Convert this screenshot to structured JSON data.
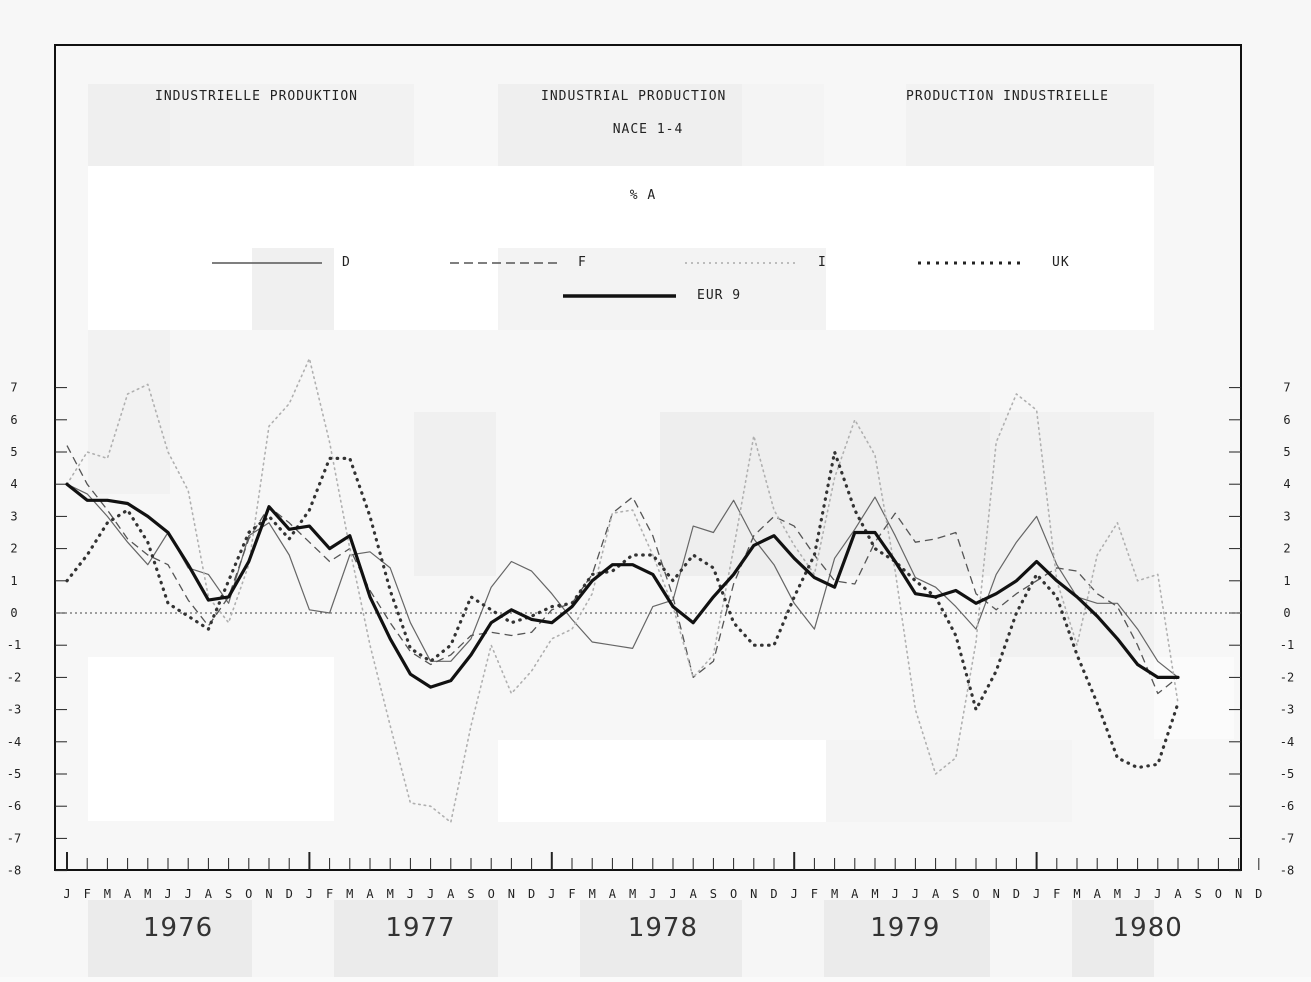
{
  "chart_data": {
    "type": "line",
    "titles": {
      "german": "INDUSTRIELLE PRODUKTION",
      "english": "INDUSTRIAL PRODUCTION",
      "french": "PRODUCTION INDUSTRIELLE",
      "subtitle": "NACE 1-4",
      "unit": "% A"
    },
    "ylim": [
      -8,
      7
    ],
    "yticks": [
      "-8",
      "-7",
      "-6",
      "-5",
      "-4",
      "-3",
      "-2",
      "-1",
      "0",
      "1",
      "2",
      "3",
      "4",
      "5",
      "6",
      "7"
    ],
    "month_labels": [
      "J",
      "F",
      "M",
      "A",
      "M",
      "J",
      "J",
      "A",
      "S",
      "O",
      "N",
      "D",
      "J",
      "F",
      "M",
      "A",
      "M",
      "J",
      "J",
      "A",
      "S",
      "O",
      "N",
      "D",
      "J",
      "F",
      "M",
      "A",
      "M",
      "J",
      "J",
      "A",
      "S",
      "O",
      "N",
      "D",
      "J",
      "F",
      "M",
      "A",
      "M",
      "J",
      "J",
      "A",
      "S",
      "O",
      "N",
      "D",
      "J",
      "F",
      "M",
      "A",
      "M",
      "J",
      "J",
      "A",
      "S",
      "O",
      "N",
      "D"
    ],
    "years": [
      "1976",
      "1977",
      "1978",
      "1979",
      "1980"
    ],
    "zero_line": true,
    "legend_position": "top",
    "series": [
      {
        "name": "D",
        "style": "thin-solid",
        "color": "#666666",
        "values": [
          4.0,
          3.7,
          3.0,
          2.2,
          1.5,
          2.5,
          1.4,
          1.2,
          0.3,
          2.4,
          2.8,
          1.8,
          0.1,
          0.0,
          1.8,
          1.9,
          1.4,
          -0.3,
          -1.5,
          -1.5,
          -0.8,
          0.8,
          1.6,
          1.3,
          0.6,
          -0.2,
          -0.9,
          -1.0,
          -1.1,
          0.2,
          0.4,
          2.7,
          2.5,
          3.5,
          2.3,
          1.5,
          0.3,
          -0.5,
          1.7,
          2.6,
          3.6,
          2.4,
          1.1,
          0.8,
          0.2,
          -0.5,
          1.2,
          2.2,
          3.0,
          1.5,
          0.5,
          0.3,
          0.3,
          -0.5,
          -1.5,
          -2.0
        ]
      },
      {
        "name": "F",
        "style": "dashed",
        "color": "#555555",
        "values": [
          5.2,
          4.0,
          3.2,
          2.3,
          1.8,
          1.5,
          0.4,
          -0.4,
          0.5,
          2.3,
          3.3,
          2.8,
          2.2,
          1.6,
          2.0,
          0.7,
          -0.3,
          -1.2,
          -1.6,
          -1.3,
          -0.7,
          -0.6,
          -0.7,
          -0.6,
          0.1,
          0.3,
          1.2,
          3.1,
          3.6,
          2.4,
          0.5,
          -2.0,
          -1.5,
          0.9,
          2.4,
          3.0,
          2.7,
          1.8,
          1.0,
          0.9,
          2.2,
          3.1,
          2.2,
          2.3,
          2.5,
          0.6,
          0.1,
          0.6,
          1.0,
          1.4,
          1.3,
          0.6,
          0.2,
          -1.0,
          -2.5,
          -2.0
        ]
      },
      {
        "name": "I",
        "style": "light-dotted",
        "color": "#b0b0b0",
        "values": [
          4.0,
          5.0,
          4.8,
          6.8,
          7.1,
          5.0,
          3.8,
          0.5,
          -0.3,
          1.5,
          5.8,
          6.5,
          7.9,
          5.3,
          2.0,
          -1.0,
          -3.5,
          -5.9,
          -6.0,
          -6.5,
          -3.5,
          -1.0,
          -2.5,
          -1.8,
          -0.8,
          -0.5,
          0.6,
          3.1,
          3.2,
          1.8,
          0.2,
          -2.0,
          -1.3,
          2.0,
          5.5,
          3.2,
          2.1,
          1.2,
          4.2,
          6.0,
          4.9,
          1.3,
          -3.0,
          -5.0,
          -4.5,
          -0.9,
          5.3,
          6.8,
          6.3,
          1.0,
          -1.0,
          1.8,
          2.8,
          1.0,
          1.2,
          -2.8
        ]
      },
      {
        "name": "UK",
        "style": "heavy-dotted",
        "color": "#333333",
        "values": [
          1.0,
          1.8,
          2.8,
          3.2,
          2.2,
          0.3,
          -0.1,
          -0.5,
          1.0,
          2.5,
          3.0,
          2.3,
          3.2,
          4.8,
          4.8,
          3.0,
          0.7,
          -1.1,
          -1.5,
          -1.0,
          0.5,
          0.1,
          -0.3,
          -0.1,
          0.2,
          0.3,
          1.2,
          1.3,
          1.8,
          1.8,
          1.0,
          1.8,
          1.4,
          -0.3,
          -1.0,
          -1.0,
          0.5,
          1.8,
          5.0,
          3.2,
          2.0,
          1.6,
          1.0,
          0.5,
          -0.7,
          -3.0,
          -1.8,
          0.0,
          1.2,
          0.5,
          -1.3,
          -2.8,
          -4.5,
          -4.8,
          -4.7,
          -2.8
        ]
      },
      {
        "name": "EUR 9",
        "style": "bold-solid",
        "color": "#111111",
        "values": [
          4.0,
          3.5,
          3.5,
          3.4,
          3.0,
          2.5,
          1.5,
          0.4,
          0.5,
          1.6,
          3.3,
          2.6,
          2.7,
          2.0,
          2.4,
          0.5,
          -0.8,
          -1.9,
          -2.3,
          -2.1,
          -1.3,
          -0.3,
          0.1,
          -0.2,
          -0.3,
          0.2,
          1.0,
          1.5,
          1.5,
          1.2,
          0.2,
          -0.3,
          0.5,
          1.2,
          2.1,
          2.4,
          1.7,
          1.1,
          0.8,
          2.5,
          2.5,
          1.6,
          0.6,
          0.5,
          0.7,
          0.3,
          0.6,
          1.0,
          1.6,
          1.0,
          0.5,
          -0.1,
          -0.8,
          -1.6,
          -2.0,
          -2.0
        ]
      }
    ]
  }
}
